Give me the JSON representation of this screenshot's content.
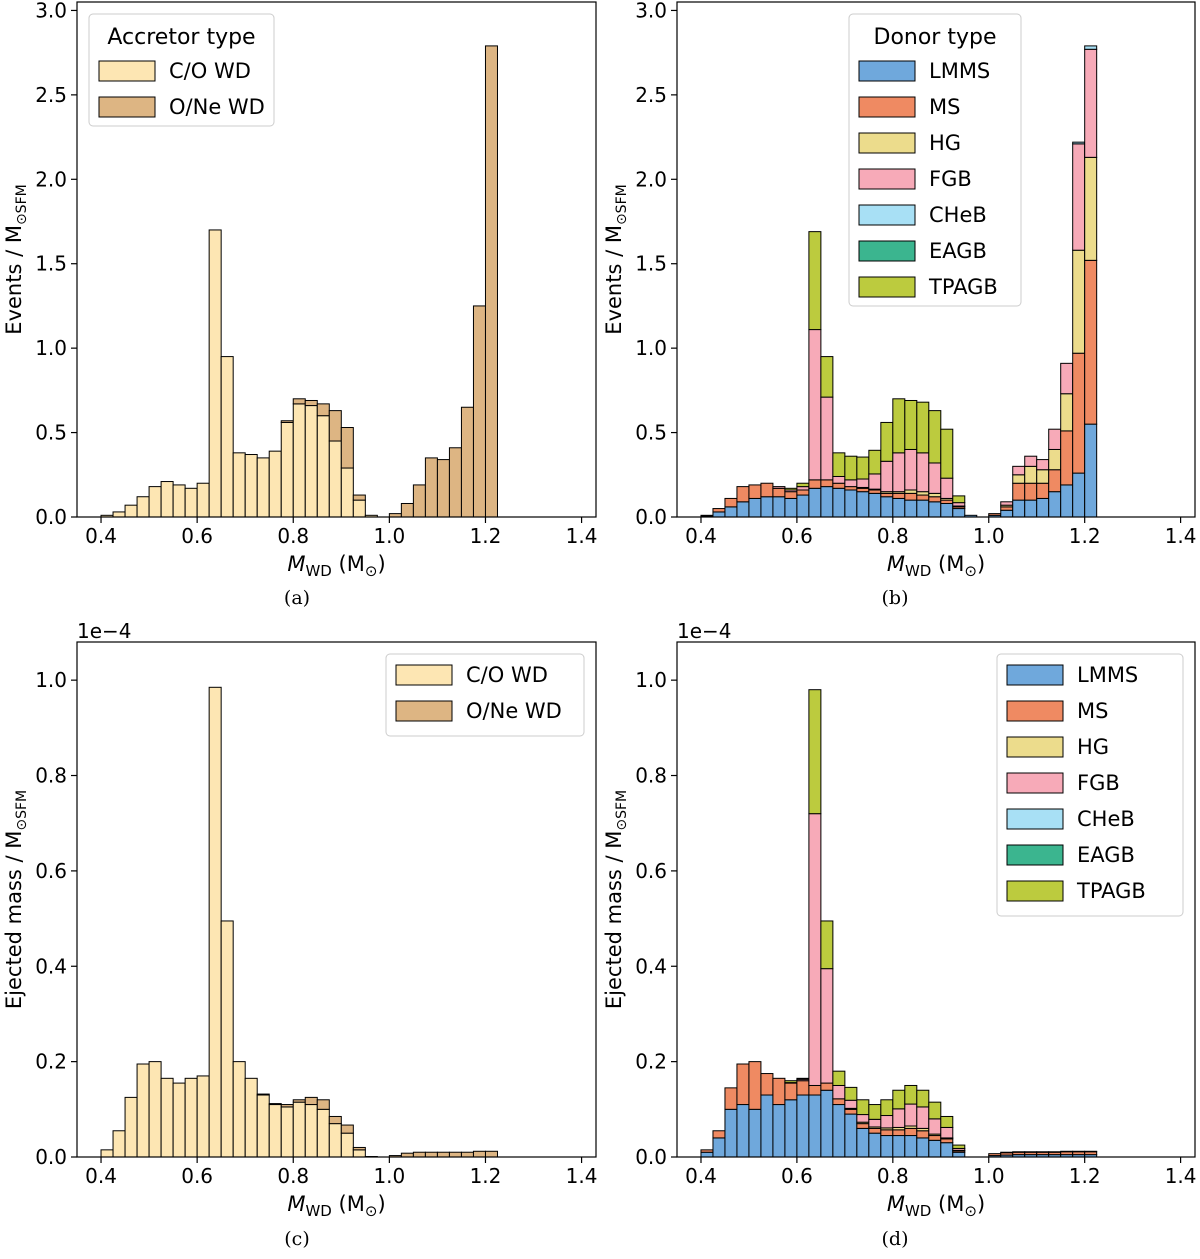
{
  "chart_data": [
    {
      "id": "a",
      "type": "bar",
      "stacked": true,
      "caption": "(a)",
      "ylabel": "Events / M",
      "ylabel_sub": "⊙SFM",
      "xlabel": "M",
      "xlabel_sub": "WD",
      "xlabel_unit": " (M",
      "xlabel_unit_sub": "⊙",
      "xlabel_close": ")",
      "xlim": [
        0.35,
        1.43
      ],
      "ylim": [
        0,
        3.05
      ],
      "y_offset_text": "",
      "xticks": [
        0.4,
        0.6,
        0.8,
        1.0,
        1.2,
        1.4
      ],
      "xtick_labels": [
        "0.4",
        "0.6",
        "0.8",
        "1.0",
        "1.2",
        "1.4"
      ],
      "yticks": [
        0.0,
        0.5,
        1.0,
        1.5,
        2.0,
        2.5,
        3.0
      ],
      "ytick_labels": [
        "0.0",
        "0.5",
        "1.0",
        "1.5",
        "2.0",
        "2.5",
        "3.0"
      ],
      "legend": {
        "title": "Accretor type",
        "position": "top-left"
      },
      "bin_start": 0.4,
      "bin_width": 0.025,
      "series": [
        {
          "name": "C/O WD",
          "color": "#fde6b3",
          "values": [
            0.01,
            0.03,
            0.07,
            0.12,
            0.18,
            0.21,
            0.19,
            0.17,
            0.2,
            1.7,
            0.95,
            0.38,
            0.37,
            0.35,
            0.39,
            0.56,
            0.67,
            0.66,
            0.6,
            0.45,
            0.29,
            0.1,
            0.01,
            0,
            0,
            0,
            0,
            0,
            0,
            0,
            0,
            0,
            0
          ]
        },
        {
          "name": "O/Ne WD",
          "color": "#ddb583",
          "values": [
            0,
            0,
            0,
            0,
            0,
            0,
            0,
            0,
            0,
            0,
            0,
            0,
            0,
            0,
            0,
            0.01,
            0.03,
            0.03,
            0.07,
            0.18,
            0.24,
            0.03,
            0,
            0,
            0.02,
            0.08,
            0.19,
            0.35,
            0.34,
            0.41,
            0.65,
            1.25,
            2.79
          ]
        }
      ]
    },
    {
      "id": "b",
      "type": "bar",
      "stacked": true,
      "caption": "(b)",
      "ylabel": "Events / M",
      "ylabel_sub": "⊙SFM",
      "xlabel": "M",
      "xlabel_sub": "WD",
      "xlabel_unit": " (M",
      "xlabel_unit_sub": "⊙",
      "xlabel_close": ")",
      "xlim": [
        0.35,
        1.43
      ],
      "ylim": [
        0,
        3.05
      ],
      "y_offset_text": "",
      "xticks": [
        0.4,
        0.6,
        0.8,
        1.0,
        1.2,
        1.4
      ],
      "xtick_labels": [
        "0.4",
        "0.6",
        "0.8",
        "1.0",
        "1.2",
        "1.4"
      ],
      "yticks": [
        0.0,
        0.5,
        1.0,
        1.5,
        2.0,
        2.5,
        3.0
      ],
      "ytick_labels": [
        "0.0",
        "0.5",
        "1.0",
        "1.5",
        "2.0",
        "2.5",
        "3.0"
      ],
      "legend": {
        "title": "Donor type",
        "position": "top-right"
      },
      "bin_start": 0.4,
      "bin_width": 0.025,
      "series": [
        {
          "name": "LMMS",
          "color": "#6fa8dc",
          "values": [
            0.005,
            0.03,
            0.06,
            0.09,
            0.11,
            0.12,
            0.12,
            0.11,
            0.13,
            0.17,
            0.18,
            0.17,
            0.16,
            0.15,
            0.14,
            0.12,
            0.11,
            0.1,
            0.1,
            0.09,
            0.08,
            0.05,
            0.01,
            0,
            0.01,
            0.04,
            0.1,
            0.1,
            0.11,
            0.15,
            0.19,
            0.26,
            0.55
          ]
        },
        {
          "name": "MS",
          "color": "#ef8a62",
          "values": [
            0.005,
            0.02,
            0.05,
            0.09,
            0.08,
            0.08,
            0.05,
            0.04,
            0.03,
            0.05,
            0.04,
            0.03,
            0.02,
            0.02,
            0.02,
            0.02,
            0.03,
            0.04,
            0.03,
            0.03,
            0.02,
            0.01,
            0,
            0,
            0.01,
            0.02,
            0.1,
            0.1,
            0.09,
            0.13,
            0.32,
            0.71,
            0.97
          ]
        },
        {
          "name": "HG",
          "color": "#ecdc8c",
          "values": [
            0,
            0,
            0,
            0,
            0,
            0,
            0,
            0,
            0,
            0,
            0,
            0,
            0,
            0.005,
            0.005,
            0.01,
            0.01,
            0.02,
            0.02,
            0.02,
            0.01,
            0.005,
            0,
            0,
            0,
            0.01,
            0.05,
            0.1,
            0.08,
            0.12,
            0.22,
            0.61,
            0.61
          ]
        },
        {
          "name": "FGB",
          "color": "#f7aab8",
          "values": [
            0,
            0,
            0,
            0,
            0,
            0,
            0.01,
            0.01,
            0.02,
            0.89,
            0.49,
            0.04,
            0.04,
            0.05,
            0.09,
            0.18,
            0.23,
            0.24,
            0.23,
            0.18,
            0.12,
            0.02,
            0,
            0,
            0,
            0.02,
            0.05,
            0.06,
            0.06,
            0.12,
            0.18,
            0.63,
            0.64
          ]
        },
        {
          "name": "CHeB",
          "color": "#a8e0f5",
          "values": [
            0,
            0,
            0,
            0,
            0,
            0,
            0,
            0,
            0,
            0,
            0,
            0,
            0,
            0,
            0,
            0,
            0,
            0,
            0,
            0,
            0,
            0,
            0,
            0,
            0,
            0,
            0,
            0,
            0,
            0,
            0,
            0.01,
            0.02
          ]
        },
        {
          "name": "EAGB",
          "color": "#3bb58f",
          "values": [
            0,
            0,
            0,
            0,
            0,
            0,
            0,
            0,
            0,
            0,
            0,
            0,
            0,
            0,
            0,
            0,
            0,
            0,
            0,
            0,
            0,
            0,
            0,
            0,
            0,
            0,
            0,
            0,
            0,
            0,
            0,
            0,
            0
          ]
        },
        {
          "name": "TPAGB",
          "color": "#bccb3e",
          "values": [
            0,
            0,
            0,
            0,
            0,
            0,
            0,
            0.01,
            0.02,
            0.58,
            0.24,
            0.14,
            0.14,
            0.13,
            0.14,
            0.23,
            0.32,
            0.29,
            0.3,
            0.31,
            0.29,
            0.04,
            0,
            0,
            0,
            0,
            0,
            0,
            0,
            0,
            0,
            0,
            0
          ]
        }
      ]
    },
    {
      "id": "c",
      "type": "bar",
      "stacked": true,
      "caption": "(c)",
      "ylabel": "Ejected mass / M",
      "ylabel_sub": "⊙SFM",
      "xlabel": "M",
      "xlabel_sub": "WD",
      "xlabel_unit": " (M",
      "xlabel_unit_sub": "⊙",
      "xlabel_close": ")",
      "xlim": [
        0.35,
        1.43
      ],
      "ylim": [
        0,
        1.08
      ],
      "y_offset_text": "1e−4",
      "xticks": [
        0.4,
        0.6,
        0.8,
        1.0,
        1.2,
        1.4
      ],
      "xtick_labels": [
        "0.4",
        "0.6",
        "0.8",
        "1.0",
        "1.2",
        "1.4"
      ],
      "yticks": [
        0.0,
        0.2,
        0.4,
        0.6,
        0.8,
        1.0
      ],
      "ytick_labels": [
        "0.0",
        "0.2",
        "0.4",
        "0.6",
        "0.8",
        "1.0"
      ],
      "legend": {
        "title": "",
        "position": "top-right"
      },
      "bin_start": 0.4,
      "bin_width": 0.025,
      "series": [
        {
          "name": "C/O WD",
          "color": "#fde6b3",
          "values": [
            0.015,
            0.055,
            0.125,
            0.195,
            0.2,
            0.165,
            0.155,
            0.165,
            0.17,
            0.985,
            0.495,
            0.2,
            0.165,
            0.13,
            0.11,
            0.105,
            0.115,
            0.11,
            0.1,
            0.07,
            0.05,
            0.015,
            0,
            0,
            0,
            0,
            0,
            0,
            0,
            0,
            0,
            0,
            0
          ]
        },
        {
          "name": "O/Ne WD",
          "color": "#ddb583",
          "values": [
            0,
            0,
            0,
            0,
            0,
            0,
            0,
            0,
            0,
            0,
            0,
            0,
            0,
            0.002,
            0.002,
            0.005,
            0.005,
            0.015,
            0.02,
            0.015,
            0.017,
            0.005,
            0.001,
            0,
            0.003,
            0.008,
            0.01,
            0.01,
            0.01,
            0.01,
            0.01,
            0.012,
            0.012
          ]
        }
      ]
    },
    {
      "id": "d",
      "type": "bar",
      "stacked": true,
      "caption": "(d)",
      "ylabel": "Ejected mass / M",
      "ylabel_sub": "⊙SFM",
      "xlabel": "M",
      "xlabel_sub": "WD",
      "xlabel_unit": " (M",
      "xlabel_unit_sub": "⊙",
      "xlabel_close": ")",
      "xlim": [
        0.35,
        1.43
      ],
      "ylim": [
        0,
        1.08
      ],
      "y_offset_text": "1e−4",
      "xticks": [
        0.4,
        0.6,
        0.8,
        1.0,
        1.2,
        1.4
      ],
      "xtick_labels": [
        "0.4",
        "0.6",
        "0.8",
        "1.0",
        "1.2",
        "1.4"
      ],
      "yticks": [
        0.0,
        0.2,
        0.4,
        0.6,
        0.8,
        1.0
      ],
      "ytick_labels": [
        "0.0",
        "0.2",
        "0.4",
        "0.6",
        "0.8",
        "1.0"
      ],
      "legend": {
        "title": "",
        "position": "top-right"
      },
      "bin_start": 0.4,
      "bin_width": 0.025,
      "series": [
        {
          "name": "LMMS",
          "color": "#6fa8dc",
          "values": [
            0.01,
            0.04,
            0.1,
            0.11,
            0.1,
            0.13,
            0.11,
            0.12,
            0.13,
            0.13,
            0.14,
            0.11,
            0.09,
            0.06,
            0.05,
            0.045,
            0.045,
            0.045,
            0.04,
            0.035,
            0.03,
            0.01,
            0,
            0,
            0.003,
            0.004,
            0.005,
            0.005,
            0.005,
            0.005,
            0.005,
            0.005,
            0.005
          ]
        },
        {
          "name": "MS",
          "color": "#ef8a62",
          "values": [
            0.005,
            0.015,
            0.045,
            0.085,
            0.1,
            0.045,
            0.055,
            0.035,
            0.03,
            0.02,
            0.015,
            0.012,
            0.01,
            0.01,
            0.01,
            0.012,
            0.012,
            0.015,
            0.015,
            0.01,
            0.008,
            0.003,
            0,
            0,
            0.004,
            0.005,
            0.005,
            0.005,
            0.005,
            0.005,
            0.006,
            0.006,
            0.006
          ]
        },
        {
          "name": "HG",
          "color": "#ecdc8c",
          "values": [
            0,
            0,
            0,
            0,
            0,
            0,
            0,
            0,
            0,
            0,
            0,
            0,
            0.002,
            0.003,
            0.003,
            0.004,
            0.005,
            0.005,
            0.005,
            0.003,
            0.002,
            0.001,
            0,
            0,
            0,
            0.001,
            0.001,
            0.001,
            0.001,
            0.001,
            0.001,
            0.001,
            0.001
          ]
        },
        {
          "name": "FGB",
          "color": "#f7aab8",
          "values": [
            0,
            0,
            0,
            0,
            0,
            0,
            0,
            0.001,
            0.003,
            0.57,
            0.24,
            0.028,
            0.017,
            0.016,
            0.016,
            0.026,
            0.039,
            0.046,
            0.045,
            0.032,
            0.022,
            0.004,
            0,
            0,
            0,
            0,
            0,
            0,
            0,
            0,
            0,
            0,
            0
          ]
        },
        {
          "name": "CHeB",
          "color": "#a8e0f5",
          "values": [
            0,
            0,
            0,
            0,
            0,
            0,
            0,
            0,
            0,
            0,
            0,
            0,
            0,
            0,
            0,
            0,
            0,
            0,
            0,
            0,
            0,
            0,
            0,
            0,
            0,
            0,
            0,
            0,
            0,
            0,
            0,
            0,
            0
          ]
        },
        {
          "name": "EAGB",
          "color": "#3bb58f",
          "values": [
            0,
            0,
            0,
            0,
            0,
            0,
            0,
            0,
            0,
            0,
            0,
            0,
            0,
            0,
            0,
            0,
            0,
            0,
            0,
            0,
            0,
            0,
            0,
            0,
            0,
            0,
            0,
            0,
            0,
            0,
            0,
            0,
            0
          ]
        },
        {
          "name": "TPAGB",
          "color": "#bccb3e",
          "values": [
            0,
            0,
            0,
            0,
            0,
            0,
            0,
            0.004,
            0.002,
            0.26,
            0.1,
            0.03,
            0.027,
            0.031,
            0.031,
            0.033,
            0.039,
            0.039,
            0.035,
            0.035,
            0.023,
            0.007,
            0,
            0,
            0,
            0,
            0,
            0,
            0,
            0,
            0,
            0,
            0
          ]
        }
      ]
    }
  ]
}
